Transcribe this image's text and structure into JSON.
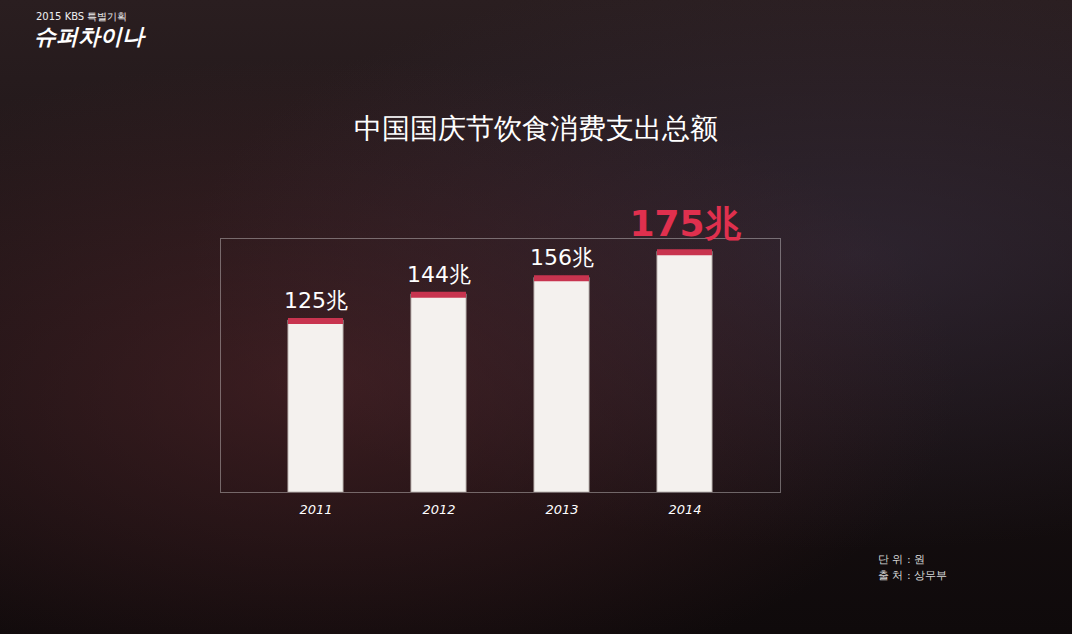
{
  "chart_data": {
    "type": "bar",
    "title": "中国国庆节饮食消费支出总额",
    "categories": [
      "2011",
      "2012",
      "2013",
      "2014"
    ],
    "values": [
      125,
      144,
      156,
      175
    ],
    "value_labels": [
      "125兆",
      "144兆",
      "156兆",
      "175兆"
    ],
    "data_labels": true,
    "color": "#f4f1ee",
    "ylim": [
      0,
      185
    ],
    "tick_labels": "x",
    "grid": false,
    "annotations": [
      "2015 KBS 특별기획",
      "슈퍼차이나",
      "단 위 : 원",
      "출 처 : 상무부"
    ]
  }
}
